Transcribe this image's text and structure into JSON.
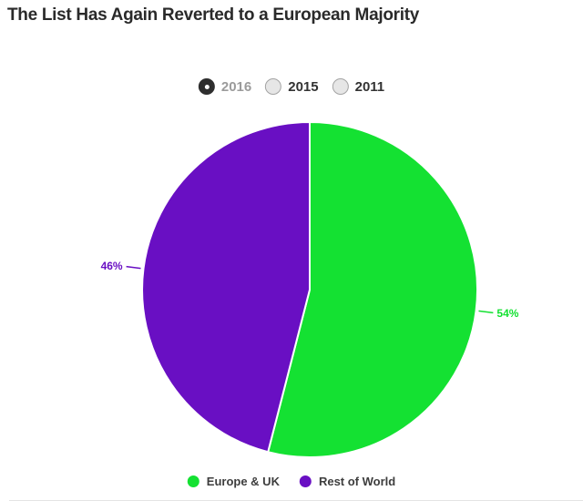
{
  "title": "The List Has Again Reverted to a European Majority",
  "year_selector": {
    "options": [
      {
        "label": "2016",
        "selected": true
      },
      {
        "label": "2015",
        "selected": false
      },
      {
        "label": "2011",
        "selected": false
      }
    ]
  },
  "chart_data": {
    "type": "pie",
    "title": "The List Has Again Reverted to a European Majority",
    "selected_year": "2016",
    "labels": [
      "Europe & UK",
      "Rest of World"
    ],
    "values": [
      54,
      46
    ],
    "value_labels": [
      "54%",
      "46%"
    ],
    "colors": [
      "#14e132",
      "#690fc3"
    ],
    "start_angle_deg": 0,
    "direction": "clockwise",
    "legend_position": "bottom"
  },
  "legend": {
    "items": [
      {
        "label": "Europe & UK",
        "color": "#14e132"
      },
      {
        "label": "Rest of World",
        "color": "#690fc3"
      }
    ]
  },
  "colors": {
    "title_text": "#2a2a2a",
    "selected_year_text": "#9b9b9b",
    "year_text": "#333333",
    "divider": "#e4e4e4",
    "background": "#ffffff"
  }
}
